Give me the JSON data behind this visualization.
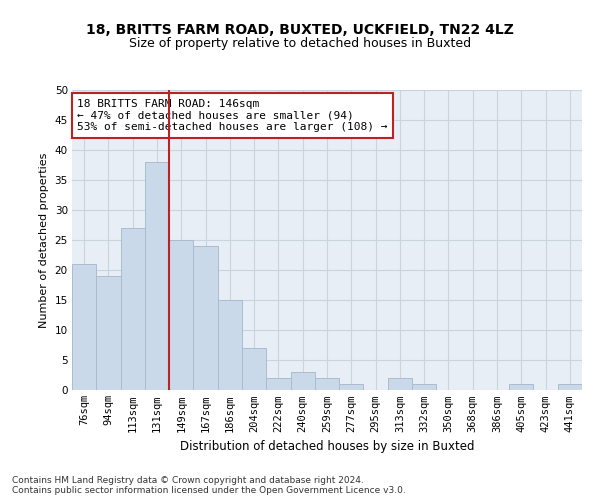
{
  "title1": "18, BRITTS FARM ROAD, BUXTED, UCKFIELD, TN22 4LZ",
  "title2": "Size of property relative to detached houses in Buxted",
  "xlabel": "Distribution of detached houses by size in Buxted",
  "ylabel": "Number of detached properties",
  "categories": [
    "76sqm",
    "94sqm",
    "113sqm",
    "131sqm",
    "149sqm",
    "167sqm",
    "186sqm",
    "204sqm",
    "222sqm",
    "240sqm",
    "259sqm",
    "277sqm",
    "295sqm",
    "313sqm",
    "332sqm",
    "350sqm",
    "368sqm",
    "386sqm",
    "405sqm",
    "423sqm",
    "441sqm"
  ],
  "values": [
    21,
    19,
    27,
    38,
    25,
    24,
    15,
    7,
    2,
    3,
    2,
    1,
    0,
    2,
    1,
    0,
    0,
    0,
    1,
    0,
    1
  ],
  "bar_color": "#c9d9ea",
  "bar_edge_color": "#aabcce",
  "vline_x": 3.5,
  "vline_color": "#bb2222",
  "annotation_line1": "18 BRITTS FARM ROAD: 146sqm",
  "annotation_line2": "← 47% of detached houses are smaller (94)",
  "annotation_line3": "53% of semi-detached houses are larger (108) →",
  "annotation_box_color": "#ffffff",
  "annotation_box_edge": "#bb2222",
  "ylim": [
    0,
    50
  ],
  "yticks": [
    0,
    5,
    10,
    15,
    20,
    25,
    30,
    35,
    40,
    45,
    50
  ],
  "grid_color": "#c8d4de",
  "background_color": "#e8eef5",
  "footnote": "Contains HM Land Registry data © Crown copyright and database right 2024.\nContains public sector information licensed under the Open Government Licence v3.0.",
  "title1_fontsize": 10,
  "title2_fontsize": 9,
  "xlabel_fontsize": 8.5,
  "ylabel_fontsize": 8,
  "tick_fontsize": 7.5,
  "annotation_fontsize": 8,
  "footnote_fontsize": 6.5
}
